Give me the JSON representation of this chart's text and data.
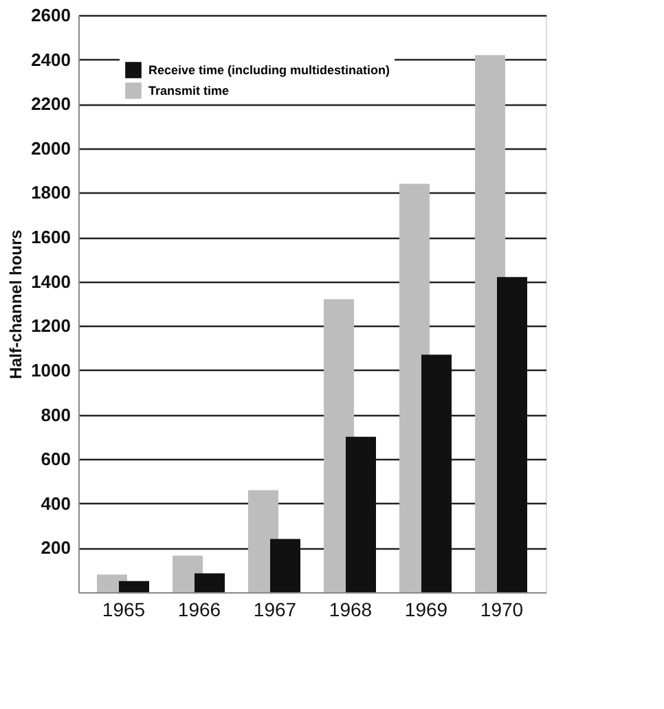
{
  "chart_data": {
    "type": "bar",
    "ylabel": "Half-channel hours",
    "categories": [
      "1965",
      "1966",
      "1967",
      "1968",
      "1969",
      "1970"
    ],
    "series": [
      {
        "name": "Receive time (including multidestination)",
        "color": "#111111",
        "values": [
          50,
          85,
          240,
          700,
          1070,
          1420
        ]
      },
      {
        "name": "Transmit time",
        "color": "#bdbdbd",
        "values": [
          80,
          165,
          460,
          1320,
          1840,
          2420
        ]
      }
    ],
    "ylim": [
      0,
      2600
    ],
    "yticks": [
      200,
      400,
      600,
      800,
      1000,
      1200,
      1400,
      1600,
      1800,
      2000,
      2200,
      2400,
      2600
    ],
    "grid": "y",
    "legend": "top left"
  }
}
